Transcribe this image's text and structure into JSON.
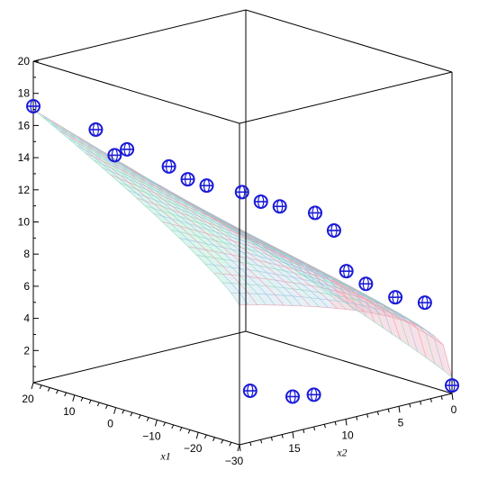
{
  "chart_data": {
    "type": "surface3d-scatter",
    "title": "",
    "axes": {
      "z": {
        "range": [
          0,
          20
        ],
        "ticks": [
          "2",
          "4",
          "6",
          "8",
          "10",
          "12",
          "14",
          "16",
          "18",
          "20"
        ]
      },
      "x1": {
        "label": "x1",
        "range": [
          -30,
          20
        ],
        "ticks": [
          "20",
          "10",
          "0",
          "−10",
          "−20",
          "−30"
        ]
      },
      "x2": {
        "label": "x2",
        "range": [
          0,
          20
        ],
        "ticks": [
          "15",
          "10",
          "5",
          "0"
        ]
      }
    },
    "grid": false,
    "surface": {
      "style": "wireframe-shaded",
      "colors": [
        "#e8a0b0",
        "#a0e0c8",
        "#a0c8e8"
      ]
    },
    "marker": {
      "shape": "circle-with-cross",
      "color": "#1a1ad8"
    },
    "points": [
      {
        "x1": 20,
        "x2": 20,
        "z": 17.2
      },
      {
        "x1": 10,
        "x2": 18,
        "z": 16.2
      },
      {
        "x1": 8,
        "x2": 17,
        "z": 14.6
      },
      {
        "x1": 5,
        "x2": 17,
        "z": 15.2
      },
      {
        "x1": 0,
        "x2": 15,
        "z": 14.2
      },
      {
        "x1": -2,
        "x2": 14,
        "z": 13.4
      },
      {
        "x1": -4,
        "x2": 13,
        "z": 13.0
      },
      {
        "x1": -10,
        "x2": 12,
        "z": 12.9
      },
      {
        "x1": -12,
        "x2": 11,
        "z": 12.3
      },
      {
        "x1": -14,
        "x2": 10,
        "z": 12.0
      },
      {
        "x1": -20,
        "x2": 9,
        "z": 11.9
      },
      {
        "x1": -22,
        "x2": 8,
        "z": 10.8
      },
      {
        "x1": -25,
        "x2": 8,
        "z": 8.5
      },
      {
        "x1": -22,
        "x2": 5,
        "z": 7.0
      },
      {
        "x1": -24,
        "x2": 3,
        "z": 6.0
      },
      {
        "x1": -26,
        "x2": 1,
        "z": 5.5
      },
      {
        "x1": -30,
        "x2": 19,
        "z": 3.2
      },
      {
        "x1": -30,
        "x2": 15,
        "z": 2.2
      },
      {
        "x1": -30,
        "x2": 13,
        "z": 2.0
      },
      {
        "x1": -30,
        "x2": 0,
        "z": 0.5
      }
    ]
  }
}
